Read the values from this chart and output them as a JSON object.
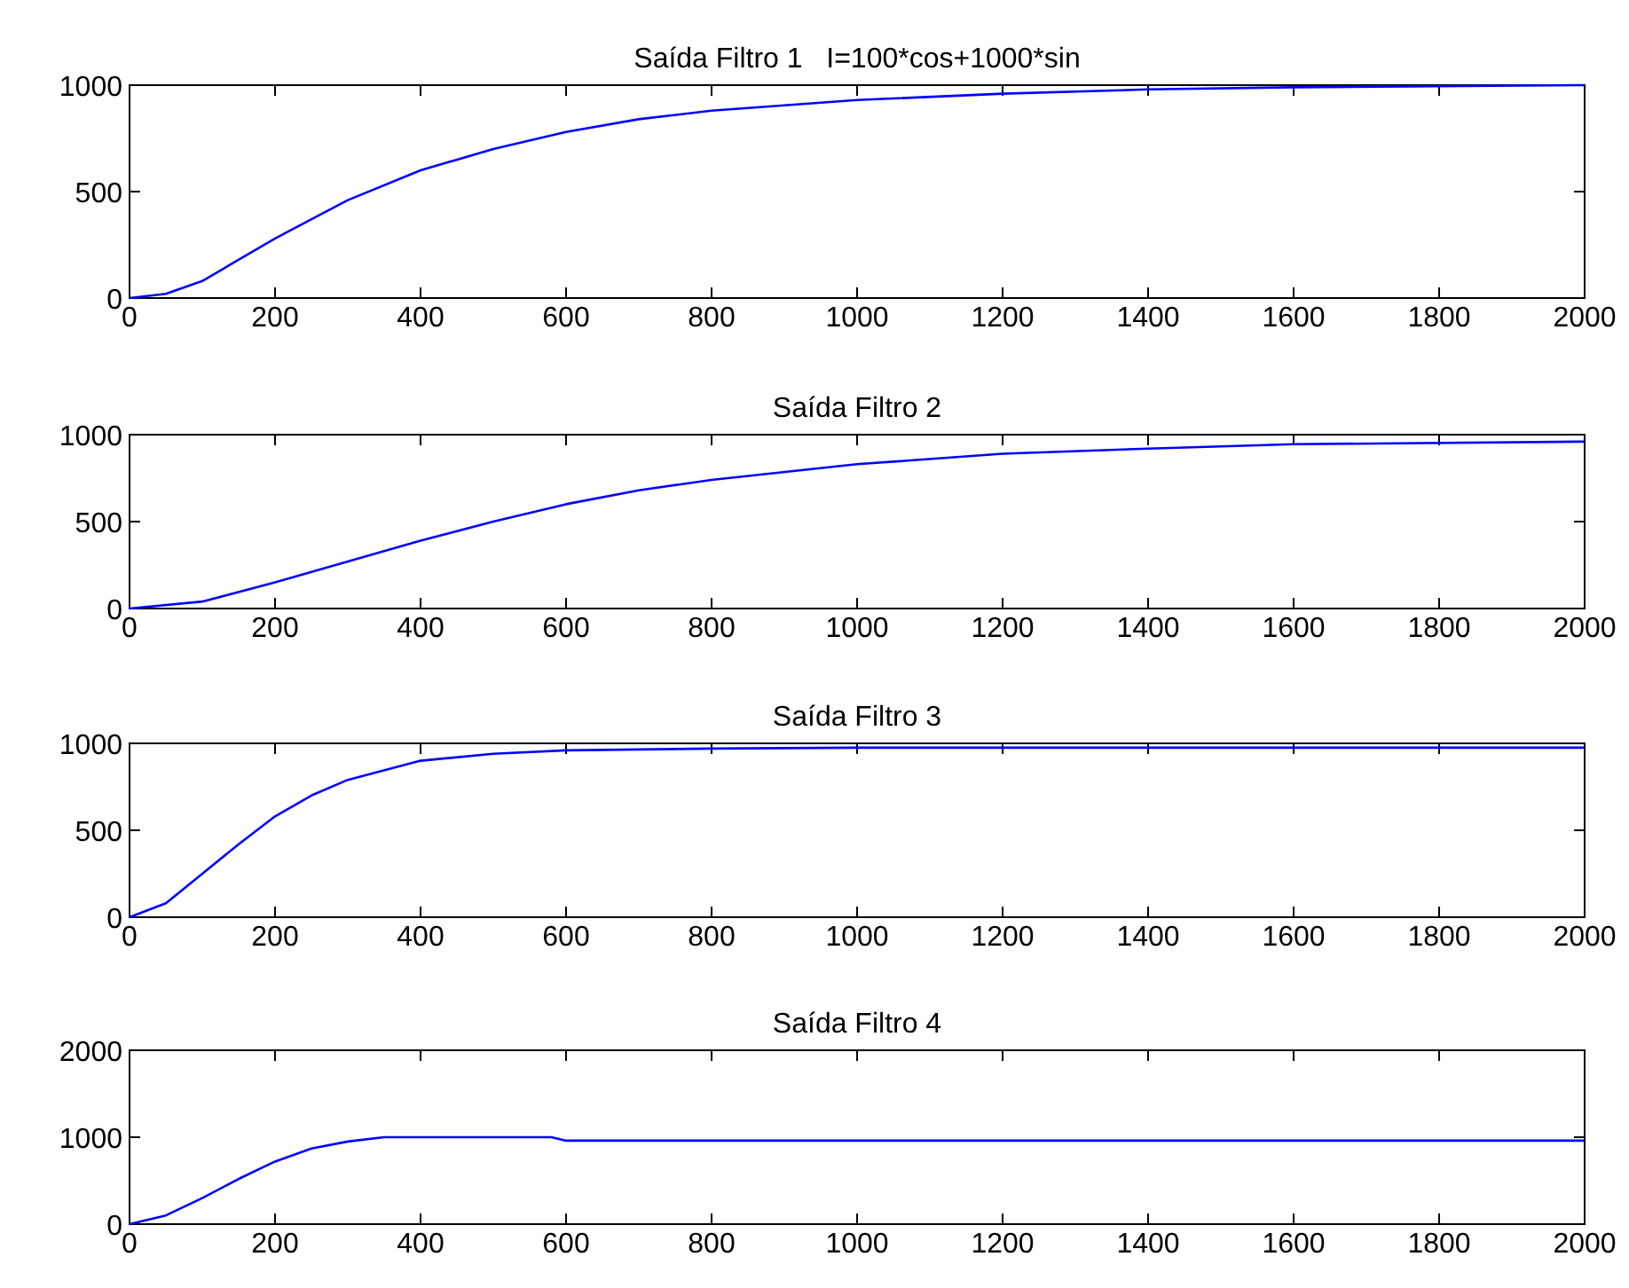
{
  "chart_data": [
    {
      "type": "line",
      "title": "Saída Filtro 1   I=100*cos+1000*sin",
      "x": [
        0,
        50,
        100,
        200,
        300,
        400,
        500,
        600,
        700,
        800,
        1000,
        1200,
        1400,
        1600,
        2000
      ],
      "series": [
        {
          "color": "#0000ff",
          "values": [
            0,
            20,
            80,
            280,
            460,
            600,
            700,
            780,
            840,
            880,
            930,
            960,
            980,
            990,
            1000
          ]
        }
      ],
      "xlim": [
        0,
        2000
      ],
      "ylim": [
        0,
        1000
      ],
      "xticks": [
        0,
        200,
        400,
        600,
        800,
        1000,
        1200,
        1400,
        1600,
        1800,
        2000
      ],
      "yticks": [
        0,
        500,
        1000
      ]
    },
    {
      "type": "line",
      "title": "Saída Filtro 2",
      "x": [
        0,
        100,
        200,
        300,
        400,
        500,
        600,
        700,
        800,
        1000,
        1200,
        1400,
        1600,
        2000
      ],
      "series": [
        {
          "color": "#0000ff",
          "values": [
            0,
            40,
            150,
            270,
            390,
            500,
            600,
            680,
            740,
            830,
            890,
            920,
            945,
            960
          ]
        }
      ],
      "xlim": [
        0,
        2000
      ],
      "ylim": [
        0,
        1000
      ],
      "xticks": [
        0,
        200,
        400,
        600,
        800,
        1000,
        1200,
        1400,
        1600,
        1800,
        2000
      ],
      "yticks": [
        0,
        500,
        1000
      ]
    },
    {
      "type": "line",
      "title": "Saída Filtro 3",
      "x": [
        0,
        50,
        100,
        150,
        200,
        250,
        300,
        400,
        500,
        600,
        800,
        1000,
        2000
      ],
      "series": [
        {
          "color": "#0000ff",
          "values": [
            0,
            80,
            250,
            420,
            580,
            700,
            790,
            900,
            940,
            960,
            970,
            975,
            975
          ]
        }
      ],
      "xlim": [
        0,
        2000
      ],
      "ylim": [
        0,
        1000
      ],
      "xticks": [
        0,
        200,
        400,
        600,
        800,
        1000,
        1200,
        1400,
        1600,
        1800,
        2000
      ],
      "yticks": [
        0,
        500,
        1000
      ]
    },
    {
      "type": "line",
      "title": "Saída Filtro 4",
      "x": [
        0,
        50,
        100,
        150,
        200,
        250,
        300,
        350,
        580,
        600,
        2000
      ],
      "series": [
        {
          "color": "#0000ff",
          "values": [
            0,
            100,
            300,
            520,
            720,
            870,
            950,
            1000,
            1000,
            960,
            960
          ]
        }
      ],
      "xlim": [
        0,
        2000
      ],
      "ylim": [
        0,
        2000
      ],
      "xticks": [
        0,
        200,
        400,
        600,
        800,
        1000,
        1200,
        1400,
        1600,
        1800,
        2000
      ],
      "yticks": [
        0,
        1000,
        2000
      ]
    }
  ]
}
